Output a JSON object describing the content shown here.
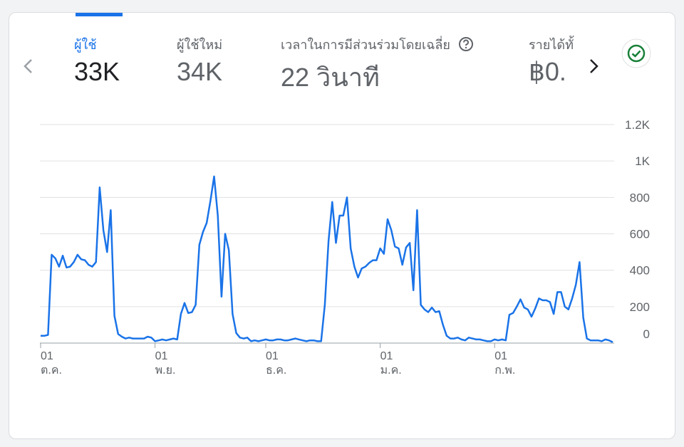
{
  "tabs": [
    {
      "label": "ผู้ใช้",
      "value": "33K"
    },
    {
      "label": "ผู้ใช้ใหม่",
      "value": "34K"
    },
    {
      "label": "เวลาในการมีส่วนร่วมโดยเฉลี่ย",
      "value": "22 วินาที"
    },
    {
      "label": "รายได้ทั้",
      "value": "฿0."
    }
  ],
  "chart_data": {
    "type": "line",
    "x": [
      0,
      1,
      2,
      3,
      4,
      5,
      6,
      7,
      8,
      9,
      10,
      11,
      12,
      13,
      14,
      15,
      16,
      17,
      18,
      19,
      20,
      21,
      22,
      23,
      24,
      25,
      26,
      27,
      28,
      29,
      30,
      31,
      32,
      33,
      34,
      35,
      36,
      37,
      38,
      39,
      40,
      41,
      42,
      43,
      44,
      45,
      46,
      47,
      48,
      49,
      50,
      51,
      52,
      53,
      54,
      55,
      56,
      57,
      58,
      59,
      60,
      61,
      62,
      63,
      64,
      65,
      66,
      67,
      68,
      69,
      70,
      71,
      72,
      73,
      74,
      75,
      76,
      77,
      78,
      79,
      80,
      81,
      82,
      83,
      84,
      85,
      86,
      87,
      88,
      89,
      90,
      91,
      92,
      93,
      94,
      95,
      96,
      97,
      98,
      99,
      100,
      101,
      102,
      103,
      104,
      105,
      106,
      107,
      108,
      109,
      110,
      111,
      112,
      113,
      114,
      115,
      116,
      117,
      118,
      119,
      120,
      121,
      122,
      123,
      124,
      125,
      126,
      127,
      128,
      129,
      130,
      131,
      132,
      133,
      134,
      135,
      136,
      137,
      138,
      139,
      140,
      141,
      142,
      143,
      144,
      145,
      146,
      147,
      148,
      149,
      150,
      151,
      152,
      153,
      154,
      155
    ],
    "series": [
      {
        "color": "#1a73e8",
        "values": [
          40,
          40,
          45,
          485,
          465,
          420,
          480,
          415,
          420,
          445,
          485,
          460,
          455,
          430,
          420,
          445,
          855,
          620,
          500,
          730,
          150,
          50,
          35,
          25,
          30,
          25,
          25,
          25,
          25,
          35,
          30,
          10,
          15,
          20,
          15,
          20,
          25,
          20,
          160,
          220,
          165,
          170,
          210,
          540,
          610,
          660,
          780,
          915,
          700,
          255,
          600,
          510,
          160,
          55,
          30,
          25,
          30,
          10,
          15,
          10,
          15,
          20,
          15,
          15,
          20,
          20,
          15,
          15,
          20,
          25,
          20,
          15,
          10,
          15,
          15,
          10,
          10,
          210,
          560,
          775,
          550,
          700,
          700,
          800,
          520,
          420,
          360,
          410,
          420,
          440,
          455,
          455,
          520,
          490,
          680,
          620,
          530,
          520,
          430,
          525,
          550,
          290,
          730,
          210,
          185,
          170,
          195,
          170,
          175,
          100,
          40,
          25,
          25,
          30,
          20,
          15,
          30,
          25,
          20,
          20,
          15,
          10,
          10,
          20,
          15,
          20,
          15,
          155,
          165,
          200,
          240,
          195,
          185,
          145,
          190,
          245,
          235,
          235,
          225,
          160,
          280,
          280,
          200,
          185,
          245,
          320,
          445,
          140,
          25,
          15,
          15,
          15,
          10,
          20,
          15,
          5
        ]
      }
    ],
    "xlim": [
      0,
      155
    ],
    "xticks": [
      {
        "value": 0,
        "label": "01",
        "sublabel": "ต.ค."
      },
      {
        "value": 31,
        "label": "01",
        "sublabel": "พ.ย."
      },
      {
        "value": 61,
        "label": "01",
        "sublabel": "ธ.ค."
      },
      {
        "value": 92,
        "label": "01",
        "sublabel": "ม.ค."
      },
      {
        "value": 123,
        "label": "01",
        "sublabel": "ก.พ."
      }
    ],
    "ylim": [
      0,
      1200
    ],
    "yticks": [
      0,
      200,
      400,
      600,
      800,
      {
        "value": 1000,
        "label": "1K"
      },
      {
        "value": 1200,
        "label": "1.2K"
      }
    ],
    "grid": true
  }
}
